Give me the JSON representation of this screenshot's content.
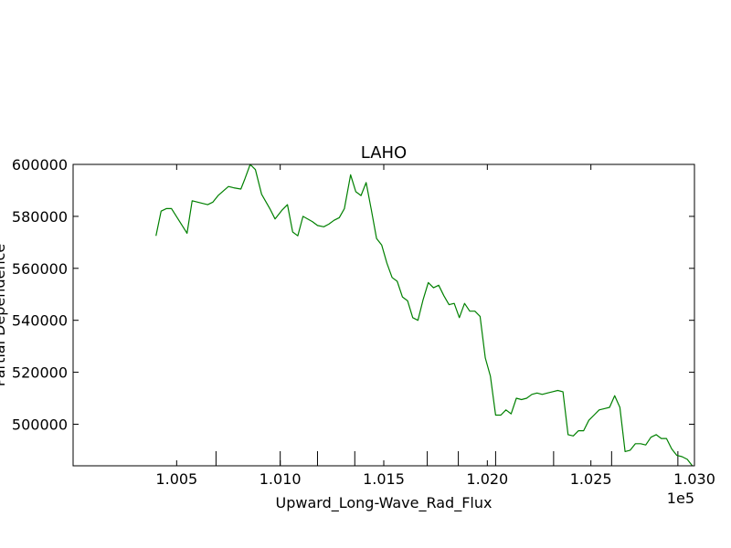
{
  "chart_data": {
    "type": "line",
    "title": "LAHO",
    "xlabel": "Upward_Long-Wave_Rad_Flux",
    "ylabel": "Partial Dependence",
    "x_offset_label": "1e5",
    "xlim": [
      100000,
      103000
    ],
    "ylim": [
      484000,
      600000
    ],
    "x_tick_values": [
      100500,
      101000,
      101500,
      102000,
      102500,
      103000
    ],
    "x_tick_labels": [
      "1.005",
      "1.010",
      "1.015",
      "1.020",
      "1.025",
      "1.030"
    ],
    "y_tick_values": [
      500000,
      520000,
      540000,
      560000,
      580000,
      600000
    ],
    "y_tick_labels": [
      "500000",
      "520000",
      "540000",
      "560000",
      "580000",
      "600000"
    ],
    "rug_x": [
      100690,
      101000,
      101180,
      101360,
      101710,
      101860,
      102040,
      102320,
      102600,
      102920
    ],
    "grid": false,
    "series": [
      {
        "color": "#008000",
        "x": [
          100400,
          100425,
          100450,
          100475,
          100550,
          100575,
          100625,
          100650,
          100675,
          100700,
          100750,
          100775,
          100810,
          100830,
          100855,
          100880,
          100910,
          100950,
          100975,
          101010,
          101035,
          101060,
          101085,
          101110,
          101155,
          101180,
          101210,
          101235,
          101260,
          101285,
          101310,
          101340,
          101365,
          101390,
          101415,
          101440,
          101465,
          101490,
          101515,
          101540,
          101565,
          101590,
          101615,
          101640,
          101665,
          101690,
          101715,
          101740,
          101765,
          101790,
          101815,
          101840,
          101865,
          101890,
          101915,
          101940,
          101965,
          101990,
          102015,
          102040,
          102065,
          102090,
          102115,
          102140,
          102165,
          102190,
          102215,
          102240,
          102265,
          102290,
          102315,
          102340,
          102365,
          102390,
          102415,
          102440,
          102465,
          102490,
          102515,
          102540,
          102565,
          102590,
          102615,
          102640,
          102665,
          102690,
          102715,
          102740,
          102765,
          102790,
          102815,
          102840,
          102865,
          102890,
          102915,
          102940,
          102965,
          102990
        ],
        "y": [
          572500,
          582000,
          583000,
          583000,
          573500,
          586000,
          585000,
          584500,
          585500,
          588000,
          591500,
          591000,
          590500,
          594500,
          600000,
          598000,
          588500,
          583000,
          579000,
          582500,
          584500,
          574000,
          572500,
          580000,
          578000,
          576500,
          576000,
          577000,
          578500,
          579500,
          583000,
          596000,
          589500,
          588000,
          593000,
          582500,
          571500,
          569000,
          562000,
          556500,
          555000,
          549000,
          547500,
          541000,
          540000,
          548000,
          554500,
          552500,
          553500,
          549500,
          546000,
          546500,
          541000,
          546500,
          543500,
          543500,
          541500,
          525500,
          518500,
          503500,
          503500,
          505500,
          504000,
          510000,
          509500,
          510000,
          511500,
          512000,
          511500,
          512000,
          512500,
          513000,
          512500,
          496000,
          495500,
          497500,
          497500,
          501500,
          503500,
          505500,
          506000,
          506500,
          511000,
          506500,
          489500,
          490000,
          492500,
          492500,
          492000,
          495000,
          496000,
          494500,
          494500,
          490500,
          488000,
          487500,
          486500,
          484000
        ]
      }
    ]
  }
}
